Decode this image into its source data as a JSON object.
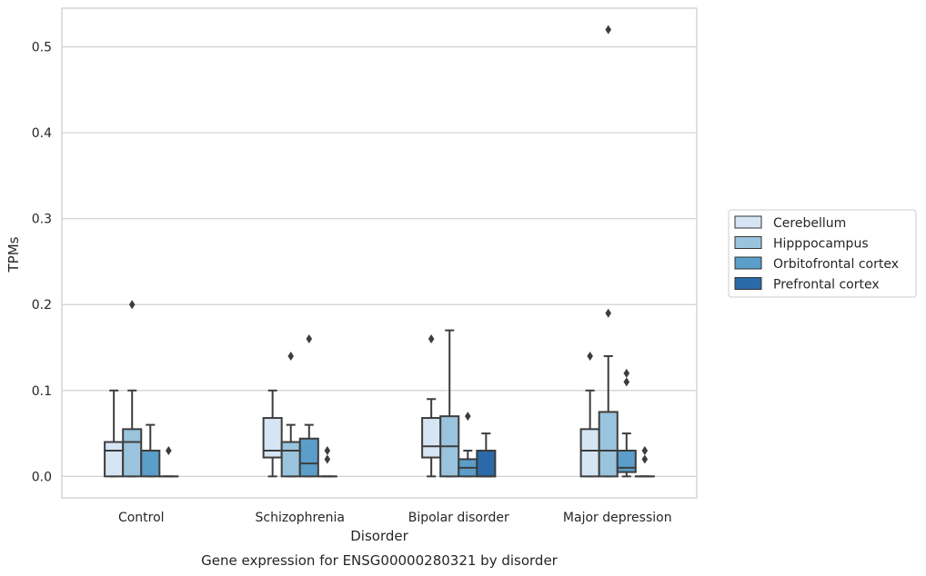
{
  "chart_data": {
    "type": "boxplot",
    "caption": "Gene expression for ENSG00000280321 by disorder",
    "xlabel": "Disorder",
    "ylabel": "TPMs",
    "ylim": [
      -0.025,
      0.545
    ],
    "yticks": [
      0.0,
      0.1,
      0.2,
      0.3,
      0.4,
      0.5
    ],
    "ytick_labels": [
      "0.0",
      "0.1",
      "0.2",
      "0.3",
      "0.4",
      "0.5"
    ],
    "grid": "horizontal",
    "legend_position": "right",
    "categories": [
      "Control",
      "Schizophrenia",
      "Bipolar disorder",
      "Major depression"
    ],
    "series": [
      {
        "name": "Cerebellum",
        "color": "#d6e5f3",
        "boxes": [
          {
            "whislo": 0.0,
            "q1": 0.0,
            "med": 0.03,
            "q3": 0.04,
            "whishi": 0.1,
            "fliers": []
          },
          {
            "whislo": 0.0,
            "q1": 0.022,
            "med": 0.03,
            "q3": 0.068,
            "whishi": 0.1,
            "fliers": []
          },
          {
            "whislo": 0.0,
            "q1": 0.022,
            "med": 0.035,
            "q3": 0.068,
            "whishi": 0.09,
            "fliers": [
              0.16
            ]
          },
          {
            "whislo": 0.0,
            "q1": 0.0,
            "med": 0.03,
            "q3": 0.055,
            "whishi": 0.1,
            "fliers": [
              0.14
            ]
          }
        ]
      },
      {
        "name": "Hipppocampus",
        "color": "#9ac4dd",
        "boxes": [
          {
            "whislo": 0.0,
            "q1": 0.0,
            "med": 0.04,
            "q3": 0.055,
            "whishi": 0.1,
            "fliers": [
              0.2
            ]
          },
          {
            "whislo": 0.0,
            "q1": 0.0,
            "med": 0.03,
            "q3": 0.04,
            "whishi": 0.06,
            "fliers": [
              0.14
            ]
          },
          {
            "whislo": 0.0,
            "q1": 0.0,
            "med": 0.035,
            "q3": 0.07,
            "whishi": 0.17,
            "fliers": []
          },
          {
            "whislo": 0.0,
            "q1": 0.0,
            "med": 0.03,
            "q3": 0.075,
            "whishi": 0.14,
            "fliers": [
              0.19,
              0.52
            ]
          }
        ]
      },
      {
        "name": "Orbitofrontal cortex",
        "color": "#5a9ec9",
        "boxes": [
          {
            "whislo": 0.0,
            "q1": 0.0,
            "med": 0.03,
            "q3": 0.03,
            "whishi": 0.06,
            "fliers": []
          },
          {
            "whislo": 0.0,
            "q1": 0.0,
            "med": 0.015,
            "q3": 0.044,
            "whishi": 0.06,
            "fliers": [
              0.16
            ]
          },
          {
            "whislo": 0.0,
            "q1": 0.0,
            "med": 0.01,
            "q3": 0.02,
            "whishi": 0.03,
            "fliers": [
              0.07
            ]
          },
          {
            "whislo": 0.0,
            "q1": 0.005,
            "med": 0.01,
            "q3": 0.03,
            "whishi": 0.05,
            "fliers": [
              0.11,
              0.12
            ]
          }
        ]
      },
      {
        "name": "Prefrontal cortex",
        "color": "#2b6aa8",
        "boxes": [
          {
            "whislo": 0.0,
            "q1": 0.0,
            "med": 0.0,
            "q3": 0.0,
            "whishi": 0.0,
            "fliers": [
              0.03
            ]
          },
          {
            "whislo": 0.0,
            "q1": 0.0,
            "med": 0.0,
            "q3": 0.0,
            "whishi": 0.0,
            "fliers": [
              0.02,
              0.03
            ]
          },
          {
            "whislo": 0.0,
            "q1": 0.0,
            "med": 0.0,
            "q3": 0.03,
            "whishi": 0.05,
            "fliers": []
          },
          {
            "whislo": 0.0,
            "q1": 0.0,
            "med": 0.0,
            "q3": 0.0,
            "whishi": 0.0,
            "fliers": [
              0.02,
              0.03
            ]
          }
        ]
      }
    ]
  }
}
